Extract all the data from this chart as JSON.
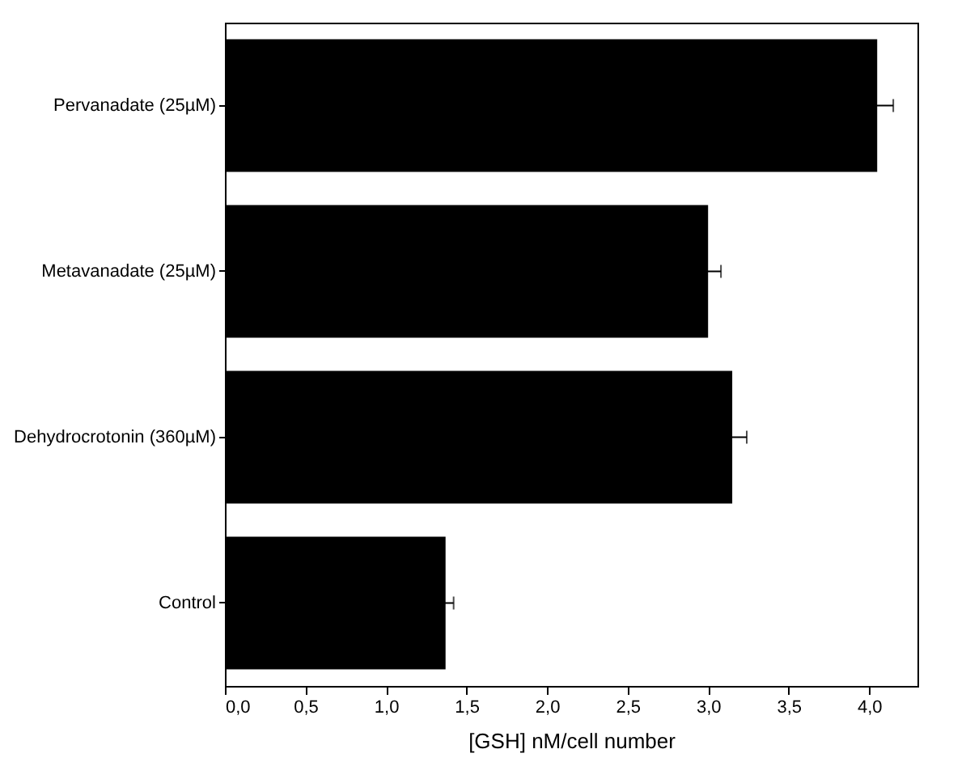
{
  "chart_data": {
    "type": "bar",
    "orientation": "horizontal",
    "xlabel": "[GSH] nM/cell number",
    "categories": [
      "Pervanadate (25µM)",
      "Metavanadate (25µM)",
      "Dehydrocrotonin (360µM)",
      "Control"
    ],
    "values": [
      4.05,
      3.0,
      3.15,
      1.37
    ],
    "errors": [
      0.1,
      0.08,
      0.09,
      0.05
    ],
    "color": "#000000",
    "xlim": [
      0,
      4.3
    ],
    "xticks": [
      {
        "value": 0,
        "label": "0,0"
      },
      {
        "value": 0.5,
        "label": "0,5"
      },
      {
        "value": 1,
        "label": "1,0"
      },
      {
        "value": 1.5,
        "label": "1,5"
      },
      {
        "value": 2,
        "label": "2,0"
      },
      {
        "value": 2.5,
        "label": "2,5"
      },
      {
        "value": 3,
        "label": "3,0"
      },
      {
        "value": 3.5,
        "label": "3,5"
      },
      {
        "value": 4,
        "label": "4,0"
      }
    ],
    "grid": false
  }
}
